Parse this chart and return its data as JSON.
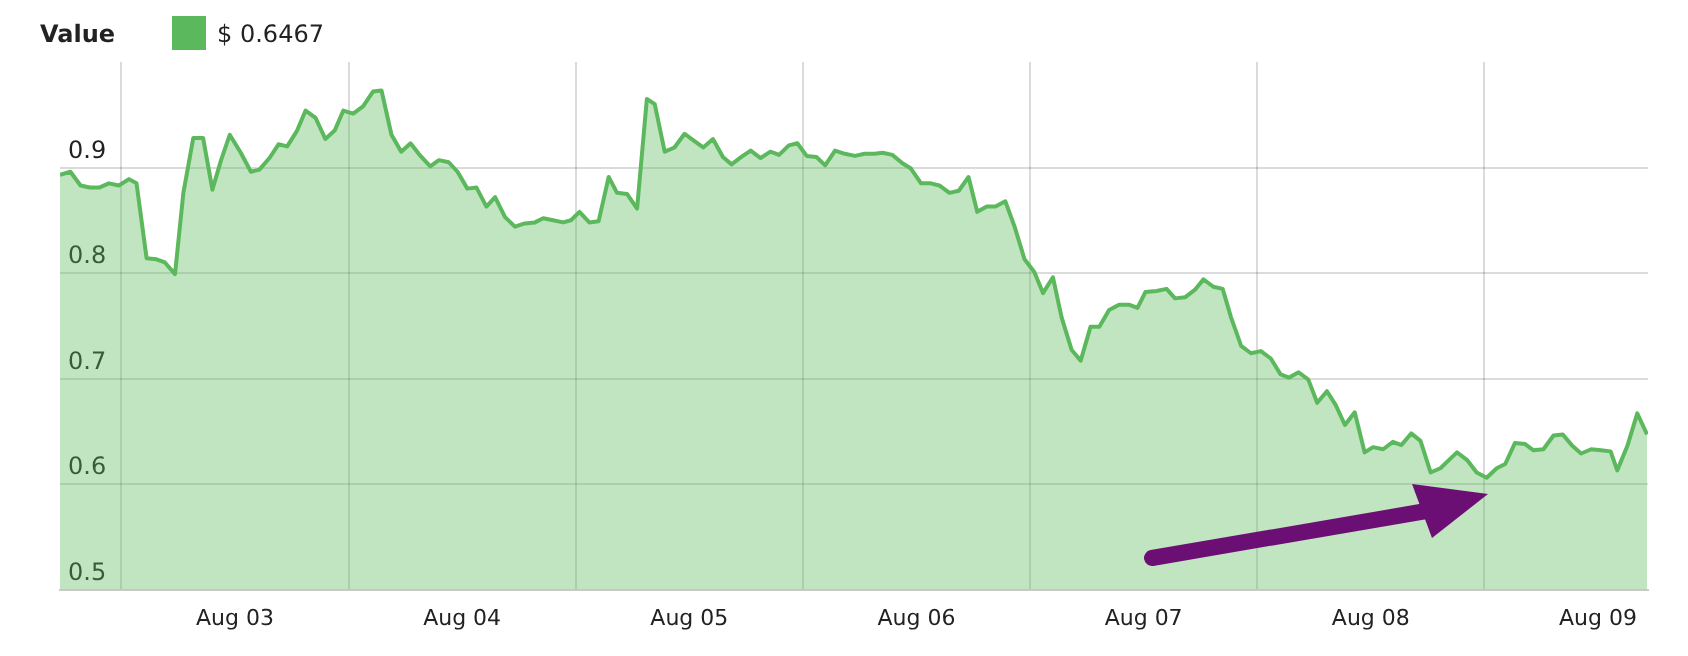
{
  "chart_data": {
    "type": "area",
    "legend_title": "Value",
    "legend": "top left",
    "grid": true,
    "marker": "none",
    "line_style": "solid",
    "xlim": [
      "--08-02T17:31",
      "--08-09T17:17"
    ],
    "ylim": [
      0.5,
      1.0
    ],
    "yticks": [
      0.5,
      0.6,
      0.7,
      0.8,
      0.9
    ],
    "xticks": [
      {
        "value": "--08-03T00:00",
        "label": null
      },
      {
        "value": "--08-03T12:00",
        "label": "Aug 03"
      },
      {
        "value": "--08-04T00:00",
        "label": null
      },
      {
        "value": "--08-04T12:00",
        "label": "Aug 04"
      },
      {
        "value": "--08-05T00:00",
        "label": null
      },
      {
        "value": "--08-05T12:00",
        "label": "Aug 05"
      },
      {
        "value": "--08-06T00:00",
        "label": null
      },
      {
        "value": "--08-06T12:00",
        "label": "Aug 06"
      },
      {
        "value": "--08-07T00:00",
        "label": null
      },
      {
        "value": "--08-07T12:00",
        "label": "Aug 07"
      },
      {
        "value": "--08-08T00:00",
        "label": null
      },
      {
        "value": "--08-08T12:00",
        "label": "Aug 08"
      },
      {
        "value": "--08-09T00:00",
        "label": null
      },
      {
        "value": "--08-09T12:00",
        "label": "Aug 09"
      }
    ],
    "series": [
      {
        "name": "$ 0.6467",
        "color": "#5cb85c",
        "x": [
          "--08-02T17:31",
          "--08-02T18:37",
          "--08-02T19:41",
          "--08-02T20:40",
          "--08-02T21:39",
          "--08-02T22:41",
          "--08-02T23:44",
          "--08-03T00:48",
          "--08-03T01:36",
          "--08-03T02:40",
          "--08-03T03:43",
          "--08-03T04:36",
          "--08-03T05:40",
          "--08-03T06:33",
          "--08-03T07:36",
          "--08-03T08:38",
          "--08-03T09:37",
          "--08-03T10:32",
          "--08-03T11:27",
          "--08-03T12:37",
          "--08-03T13:41",
          "--08-03T14:35",
          "--08-03T15:39",
          "--08-03T16:36",
          "--08-03T17:31",
          "--08-03T18:34",
          "--08-03T19:28",
          "--08-03T20:31",
          "--08-03T21:33",
          "--08-03T22:32",
          "--08-03T23:27",
          "--08-04T00:29",
          "--08-04T01:32",
          "--08-04T02:35",
          "--08-04T03:29",
          "--08-04T04:32",
          "--08-04T05:34",
          "--08-04T06:33",
          "--08-04T07:36",
          "--08-04T08:38",
          "--08-04T09:33",
          "--08-04T10:35",
          "--08-04T11:31",
          "--08-04T12:33",
          "--08-04T13:31",
          "--08-04T14:34",
          "--08-04T15:29",
          "--08-04T16:32",
          "--08-04T17:35",
          "--08-04T18:37",
          "--08-04T19:41",
          "--08-04T20:34",
          "--08-04T21:37",
          "--08-04T22:41",
          "--08-04T23:30",
          "--08-05T00:24",
          "--08-05T01:26",
          "--08-05T02:25",
          "--08-05T03:29",
          "--08-05T04:22",
          "--08-05T05:25",
          "--08-05T06:29",
          "--08-05T07:31",
          "--08-05T08:21",
          "--08-05T09:24",
          "--08-05T10:26",
          "--08-05T11:30",
          "--08-05T12:24",
          "--08-05T13:28",
          "--08-05T14:30",
          "--08-05T15:33",
          "--08-05T16:28",
          "--08-05T17:30",
          "--08-05T18:29",
          "--08-05T19:32",
          "--08-05T20:34",
          "--08-05T21:29",
          "--08-05T22:31",
          "--08-05T23:25",
          "--08-06T00:24",
          "--08-06T01:26",
          "--08-06T02:21",
          "--08-06T03:24",
          "--08-06T04:26",
          "--08-06T05:30",
          "--08-06T06:32",
          "--08-06T07:35",
          "--08-06T08:25",
          "--08-06T09:27",
          "--08-06T10:31",
          "--08-06T11:25",
          "--08-06T12:29",
          "--08-06T13:31",
          "--08-06T14:25",
          "--08-06T15:29",
          "--08-06T16:28",
          "--08-06T17:30",
          "--08-06T18:25",
          "--08-06T19:26",
          "--08-06T20:21",
          "--08-06T21:23",
          "--08-06T22:22",
          "--08-06T23:25",
          "--08-07T00:27",
          "--08-07T01:22",
          "--08-07T02:25",
          "--08-07T03:20",
          "--08-07T04:24",
          "--08-07T05:21",
          "--08-07T06:23",
          "--08-07T07:19",
          "--08-07T08:21",
          "--08-07T09:24",
          "--08-07T10:26",
          "--08-07T11:21",
          "--08-07T12:11",
          "--08-07T13:22",
          "--08-07T14:25",
          "--08-07T15:19",
          "--08-07T16:22",
          "--08-07T17:24",
          "--08-07T18:19",
          "--08-07T19:22",
          "--08-07T20:21",
          "--08-07T21:14",
          "--08-07T22:18",
          "--08-07T23:20",
          "--08-08T00:23",
          "--08-08T01:26",
          "--08-08T02:28",
          "--08-08T03:23",
          "--08-08T04:22",
          "--08-08T05:24",
          "--08-08T06:20",
          "--08-08T07:22",
          "--08-08T08:17",
          "--08-08T09:16",
          "--08-08T10:18",
          "--08-08T11:21",
          "--08-08T12:14",
          "--08-08T13:18",
          "--08-08T14:20",
          "--08-08T15:14",
          "--08-08T16:16",
          "--08-08T17:15",
          "--08-08T18:19",
          "--08-08T19:21",
          "--08-08T21:06",
          "--08-08T22:09",
          "--08-08T23:11",
          "--08-09T00:14",
          "--08-09T01:18",
          "--08-09T02:12",
          "--08-09T03:14",
          "--08-09T04:18",
          "--08-09T05:11",
          "--08-09T06:14",
          "--08-09T07:18",
          "--08-09T08:17",
          "--08-09T09:19",
          "--08-09T10:13",
          "--08-09T11:17",
          "--08-09T12:19",
          "--08-09T13:20",
          "--08-09T14:02",
          "--08-09T15:06",
          "--08-09T16:09",
          "--08-09T17:11"
        ],
        "values": [
          0.893,
          0.896,
          0.883,
          0.881,
          0.881,
          0.885,
          0.883,
          0.889,
          0.885,
          0.814,
          0.813,
          0.81,
          0.799,
          0.876,
          0.928,
          0.928,
          0.879,
          0.907,
          0.931,
          0.914,
          0.896,
          0.898,
          0.909,
          0.922,
          0.92,
          0.935,
          0.954,
          0.947,
          0.927,
          0.935,
          0.954,
          0.951,
          0.958,
          0.972,
          0.973,
          0.931,
          0.915,
          0.923,
          0.911,
          0.901,
          0.907,
          0.905,
          0.896,
          0.88,
          0.881,
          0.863,
          0.872,
          0.853,
          0.844,
          0.847,
          0.848,
          0.852,
          0.85,
          0.848,
          0.85,
          0.858,
          0.848,
          0.849,
          0.891,
          0.876,
          0.875,
          0.861,
          0.965,
          0.96,
          0.915,
          0.919,
          0.932,
          0.926,
          0.919,
          0.927,
          0.91,
          0.903,
          0.91,
          0.916,
          0.909,
          0.915,
          0.912,
          0.921,
          0.923,
          0.911,
          0.91,
          0.902,
          0.916,
          0.913,
          0.911,
          0.913,
          0.913,
          0.914,
          0.912,
          0.904,
          0.899,
          0.885,
          0.885,
          0.883,
          0.876,
          0.878,
          0.891,
          0.858,
          0.863,
          0.863,
          0.868,
          0.844,
          0.813,
          0.801,
          0.781,
          0.796,
          0.758,
          0.727,
          0.717,
          0.749,
          0.749,
          0.765,
          0.77,
          0.77,
          0.767,
          0.782,
          0.783,
          0.785,
          0.776,
          0.777,
          0.784,
          0.794,
          0.787,
          0.785,
          0.758,
          0.731,
          0.724,
          0.726,
          0.719,
          0.704,
          0.701,
          0.706,
          0.699,
          0.677,
          0.688,
          0.675,
          0.656,
          0.668,
          0.63,
          0.635,
          0.633,
          0.64,
          0.637,
          0.648,
          0.641,
          0.611,
          0.615,
          0.63,
          0.623,
          0.611,
          0.606,
          0.615,
          0.619,
          0.639,
          0.638,
          0.632,
          0.633,
          0.646,
          0.647,
          0.636,
          0.629,
          0.633,
          0.632,
          0.631,
          0.613,
          0.636,
          0.667,
          0.647
        ]
      }
    ]
  }
}
